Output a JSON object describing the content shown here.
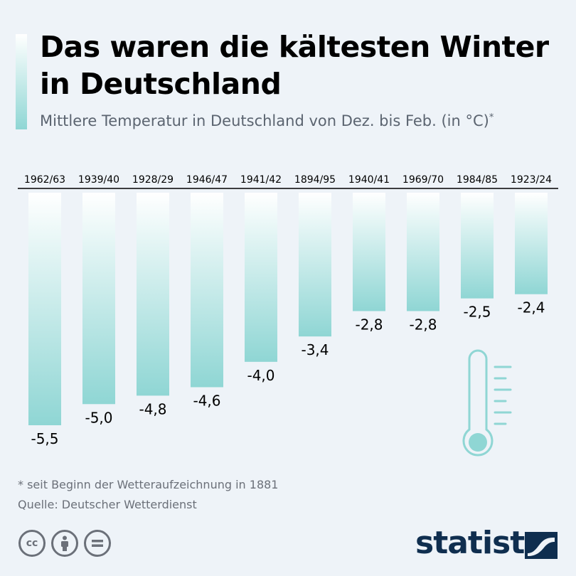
{
  "header": {
    "title": "Das waren die kältesten Winter in Deutschland",
    "subtitle": "Mittlere Temperatur in Deutschland von Dez. bis Feb. (in °C)",
    "subtitle_mark": "*"
  },
  "chart_data": {
    "type": "bar",
    "orientation": "vertical-downward",
    "title": "Das waren die kältesten Winter in Deutschland",
    "subtitle": "Mittlere Temperatur in Deutschland von Dez. bis Feb. (in °C)*",
    "categories": [
      "1962/63",
      "1939/40",
      "1928/29",
      "1946/47",
      "1941/42",
      "1894/95",
      "1940/41",
      "1969/70",
      "1984/85",
      "1923/24"
    ],
    "values": [
      -5.5,
      -5.0,
      -4.8,
      -4.6,
      -4.0,
      -3.4,
      -2.8,
      -2.8,
      -2.5,
      -2.4
    ],
    "value_labels": [
      "-5,5",
      "-5,0",
      "-4,8",
      "-4,6",
      "-4,0",
      "-3,4",
      "-2,8",
      "-2,8",
      "-2,5",
      "-2,4"
    ],
    "ylim": [
      -5.5,
      0
    ],
    "grid": false,
    "legend": "none",
    "bar_color": "#8fd6d4"
  },
  "footer": {
    "footnote": "* seit Beginn der Wetteraufzeichnung in 1881",
    "source": "Quelle: Deutscher Wetterdienst",
    "brand": "statista"
  },
  "icons": [
    "cc-icon",
    "attribution-icon",
    "no-derivatives-icon",
    "thermometer-icon",
    "statista-logo-icon"
  ]
}
